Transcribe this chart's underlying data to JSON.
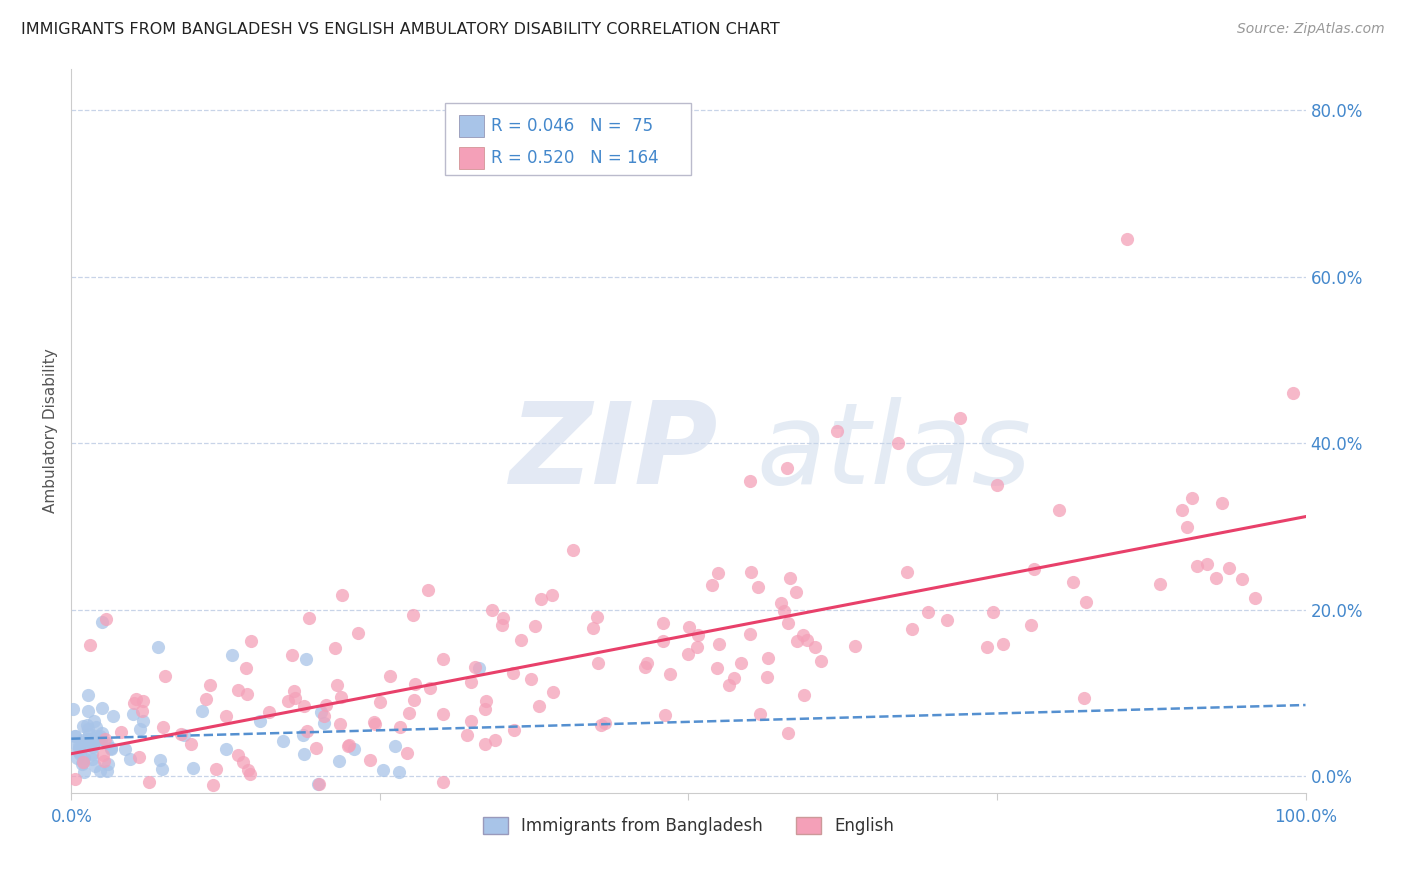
{
  "title": "IMMIGRANTS FROM BANGLADESH VS ENGLISH AMBULATORY DISABILITY CORRELATION CHART",
  "source": "Source: ZipAtlas.com",
  "ylabel": "Ambulatory Disability",
  "series1_label": "Immigrants from Bangladesh",
  "series2_label": "English",
  "series1_R": 0.046,
  "series1_N": 75,
  "series2_R": 0.52,
  "series2_N": 164,
  "series1_color": "#a8c4e8",
  "series2_color": "#f4a0b8",
  "series1_trend_color": "#5590d0",
  "series2_trend_color": "#e8406a",
  "background_color": "#ffffff",
  "grid_color": "#c8d4e8",
  "title_color": "#222222",
  "axis_label_color": "#4488cc",
  "watermark_zip_color": "#c8d8ec",
  "watermark_atlas_color": "#c8d8ec",
  "xlim": [
    0.0,
    1.0
  ],
  "ylim": [
    -0.02,
    0.85
  ],
  "ytick_vals": [
    0.0,
    0.2,
    0.4,
    0.6,
    0.8
  ],
  "ytick_labels": [
    "0.0%",
    "20.0%",
    "40.0%",
    "60.0%",
    "80.0%"
  ],
  "xtick_vals": [
    0.0,
    0.25,
    0.5,
    0.75,
    1.0
  ],
  "xtick_labels": [
    "0.0%",
    "",
    "",
    "",
    "100.0%"
  ]
}
